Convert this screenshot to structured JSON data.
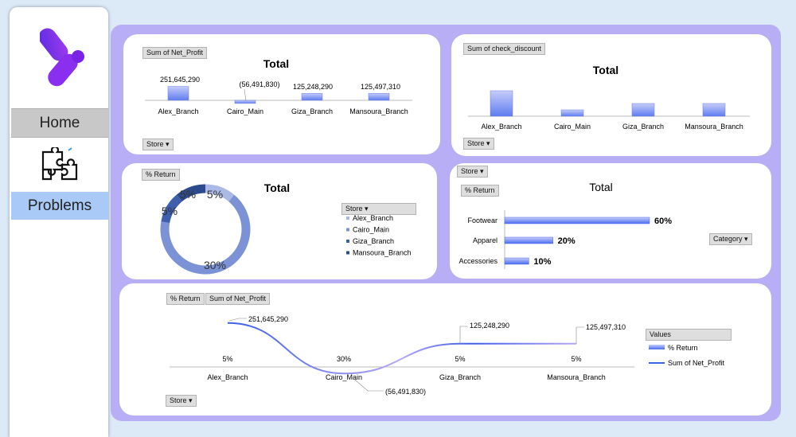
{
  "sidebar": {
    "items": [
      {
        "label": "Home",
        "icon": "logo-icon"
      },
      {
        "label": "Problems",
        "icon": "puzzle-icon"
      }
    ]
  },
  "colors": {
    "accent": "#6f8cf0",
    "frame": "#b8aef5",
    "bar": "#7a8ff2",
    "donut": "#7b93d6"
  },
  "tags": {
    "net_profit": "Sum of Net_Profit",
    "check_discount": "Sum of check_discount",
    "pct_return": "% Return",
    "store": "Store",
    "category": "Category",
    "values": "Values"
  },
  "chart_data": [
    {
      "type": "bar",
      "title": "Total",
      "categories": [
        "Alex_Branch",
        "Cairo_Main",
        "Giza_Branch",
        "Mansoura_Branch"
      ],
      "values": [
        251645290,
        -56491830,
        125248290,
        125497310
      ],
      "labels": [
        "251,645,290",
        "(56,491,830)",
        "125,248,290",
        "125,497,310"
      ],
      "ylim": [
        -70000000,
        260000000
      ]
    },
    {
      "type": "bar",
      "title": "Total",
      "categories": [
        "Alex_Branch",
        "Cairo_Main",
        "Giza_Branch",
        "Mansoura_Branch"
      ],
      "values": [
        1.0,
        0.25,
        0.5,
        0.5
      ],
      "ylim": [
        0,
        1
      ]
    },
    {
      "type": "pie",
      "title": "Total",
      "categories": [
        "Alex_Branch",
        "Cairo_Main",
        "Giza_Branch",
        "Mansoura_Branch"
      ],
      "values": [
        5,
        30,
        5,
        5
      ],
      "labels": [
        "5%",
        "30%",
        "5%",
        "5%"
      ],
      "colors": [
        "#aab9e6",
        "#7b93d6",
        "#3d5fae",
        "#2d4a8c"
      ],
      "legend_title": "Store"
    },
    {
      "type": "bar",
      "orientation": "horizontal",
      "title": "Total",
      "categories": [
        "Footwear",
        "Apparel",
        "Accessories"
      ],
      "values": [
        60,
        20,
        10
      ],
      "labels": [
        "60%",
        "20%",
        "10%"
      ],
      "xlim": [
        0,
        60
      ]
    },
    {
      "type": "line",
      "categories": [
        "Alex_Branch",
        "Cairo_Main",
        "Giza_Branch",
        "Mansoura_Branch"
      ],
      "series": [
        {
          "name": "% Return",
          "values": [
            5,
            30,
            5,
            5
          ],
          "labels": [
            "5%",
            "30%",
            "5%",
            "5%"
          ]
        },
        {
          "name": "Sum of Net_Profit",
          "values": [
            251645290,
            -56491830,
            125248290,
            125497310
          ],
          "labels": [
            "251,645,290",
            "(56,491,830)",
            "125,248,290",
            "125,497,310"
          ]
        }
      ],
      "ylim": [
        -70000000,
        260000000
      ],
      "legend_title": "Values"
    }
  ]
}
